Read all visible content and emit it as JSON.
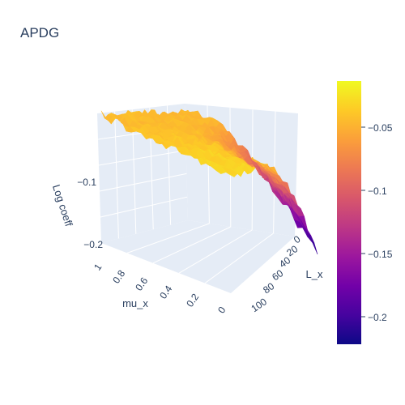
{
  "chart_data": {
    "type": "surface",
    "title": "APDG",
    "axes": {
      "x": {
        "label": "L_x",
        "range": [
          0,
          100
        ],
        "ticks": [
          "0",
          "20",
          "40",
          "60",
          "80",
          "100"
        ]
      },
      "y": {
        "label": "mu_x",
        "range": [
          0,
          1
        ],
        "ticks": [
          "0",
          "0.2",
          "0.4",
          "0.6",
          "0.8",
          "1"
        ]
      },
      "z": {
        "label": "Log coeff",
        "range": [
          -0.22,
          -0.02
        ],
        "ticks": [
          "−0.2",
          "−0.1"
        ]
      }
    },
    "surface_description": {
      "plateau_value": -0.05,
      "high_corner_value": -0.03,
      "min_value": -0.22,
      "min_at": {
        "L_x": 100,
        "mu_x": 0
      }
    },
    "colorscale": {
      "name": "Plasma",
      "range": [
        -0.22,
        -0.02
      ],
      "ticks": [
        "−0.05",
        "−0.1",
        "−0.15",
        "−0.2"
      ],
      "colors": [
        "#0d0887",
        "#46039f",
        "#7201a8",
        "#9c179e",
        "#bd3786",
        "#d8576b",
        "#ed7953",
        "#fb9f3a",
        "#fdca26",
        "#f0f921"
      ]
    },
    "grid": true,
    "legend": "colorbar-right"
  }
}
